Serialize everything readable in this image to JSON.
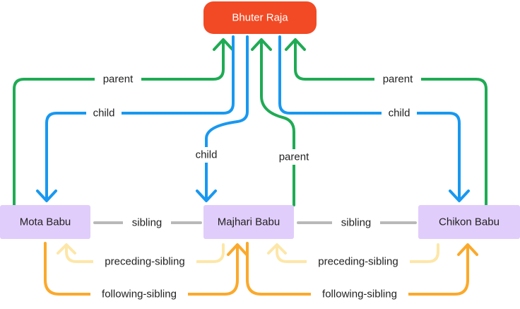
{
  "nodes": {
    "root": "Bhuter Raja",
    "mota": "Mota Babu",
    "majhari": "Majhari Babu",
    "chikon": "Chikon Babu"
  },
  "edges": {
    "parent": "parent",
    "child": "child",
    "sibling": "sibling",
    "preceding_sibling": "preceding-sibling",
    "following_sibling": "following-sibling"
  },
  "colors": {
    "root_fill": "#f24a24",
    "root_text": "#ffffff",
    "child_fill": "#e1cdfb",
    "child_text": "#222222",
    "parent_edge": "#1fab54",
    "child_edge": "#1898f0",
    "sibling_edge": "#b9b9b9",
    "preceding_edge": "#fde7a8",
    "following_edge": "#fba92b"
  }
}
